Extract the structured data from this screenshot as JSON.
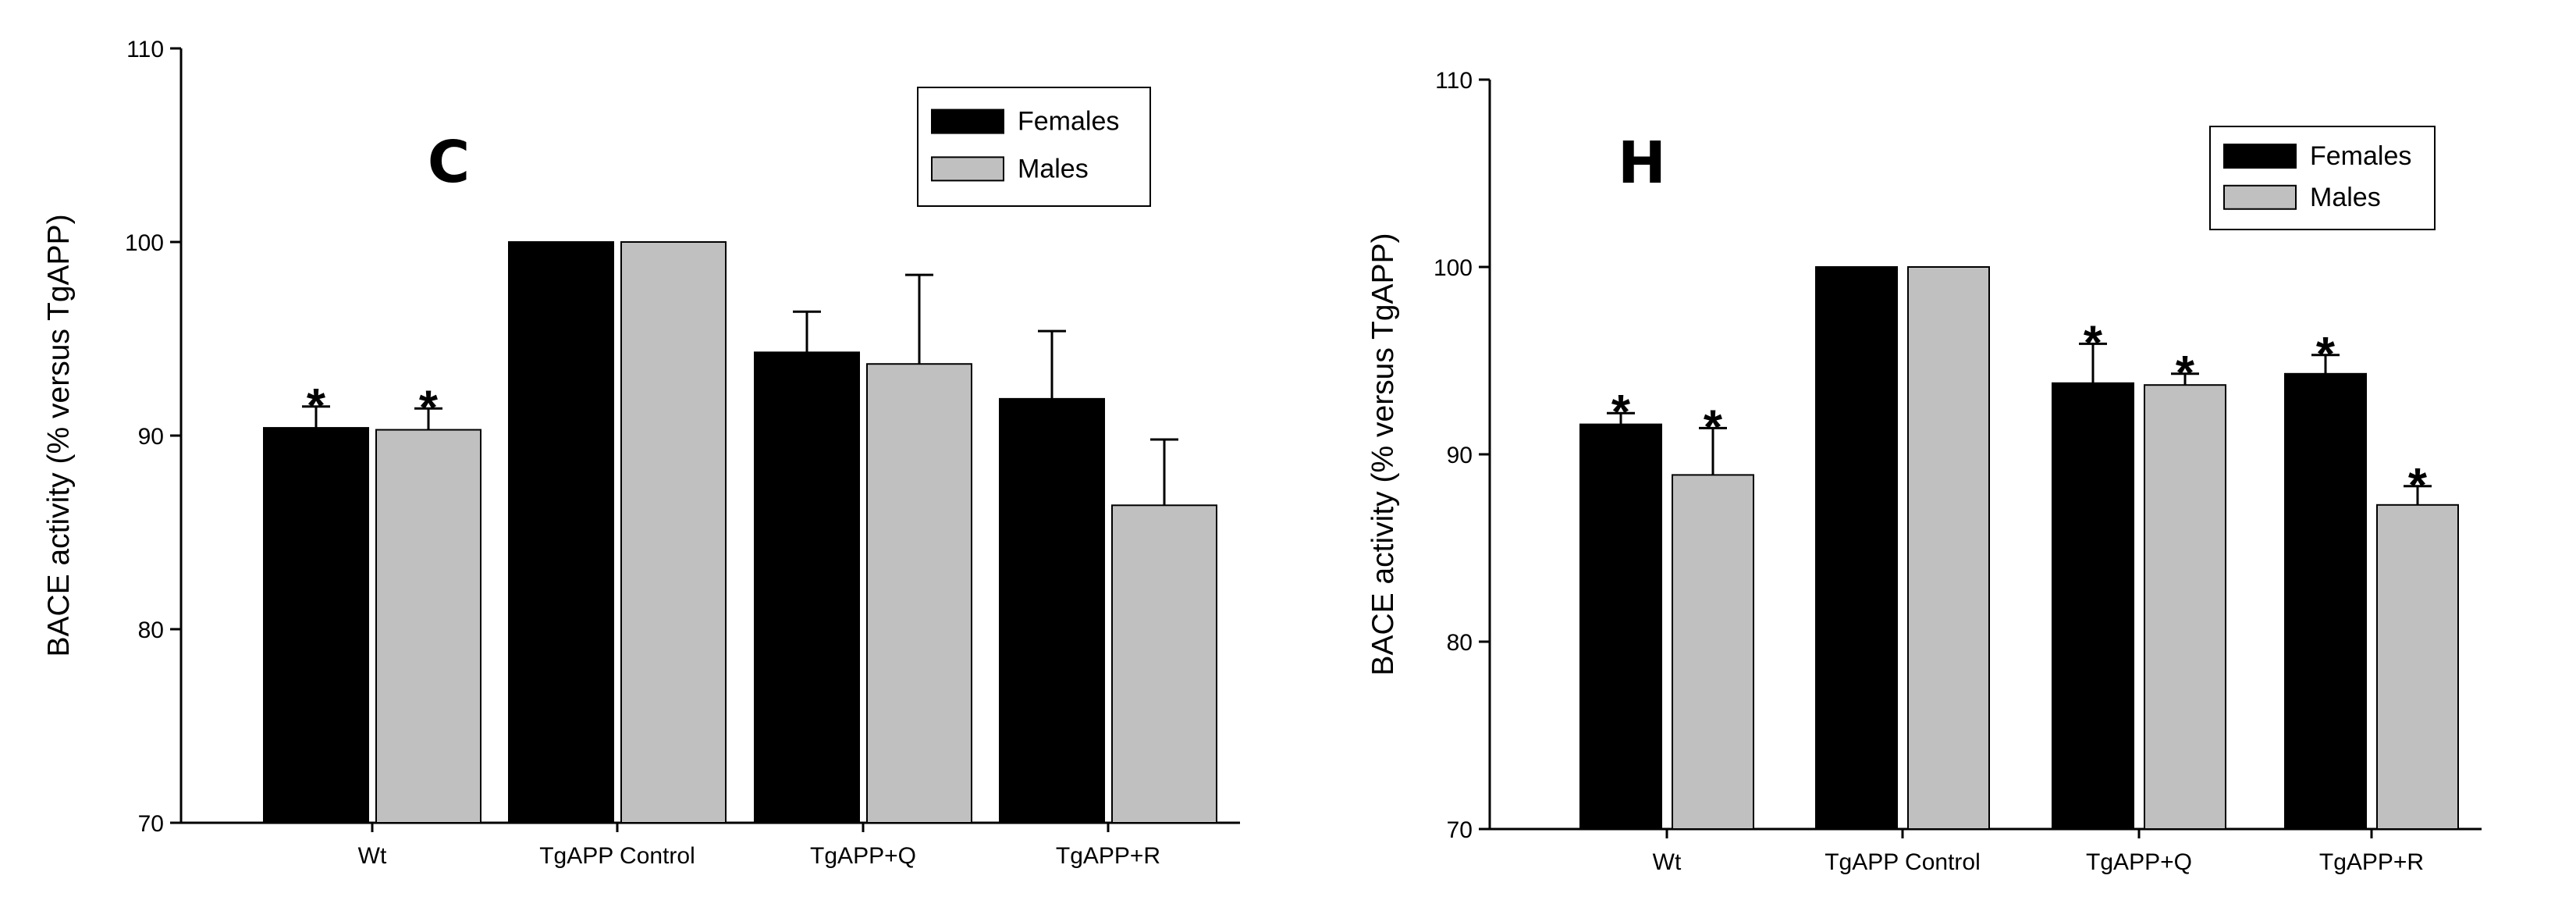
{
  "colors": {
    "females": "#000000",
    "males": "#c0c0c0",
    "axis": "#000000"
  },
  "chart_data": [
    {
      "type": "bar",
      "panel_label": "C",
      "categories": [
        "Wt",
        "TgAPP Control",
        "TgAPP+Q",
        "TgAPP+R"
      ],
      "ylabel": "BACE activity (% versus TgAPP)",
      "xlabel": "",
      "ylim": [
        70,
        110
      ],
      "yticks": [
        70,
        80,
        90,
        100,
        110
      ],
      "grid": false,
      "legend_position": "top-right",
      "series": [
        {
          "name": "Females",
          "values": [
            90.4,
            100,
            94.3,
            91.9
          ],
          "errors": [
            1.1,
            0,
            2.1,
            3.5
          ],
          "significant": [
            true,
            false,
            false,
            false
          ]
        },
        {
          "name": "Males",
          "values": [
            90.3,
            100,
            93.7,
            86.4
          ],
          "errors": [
            1.1,
            0,
            4.6,
            3.4
          ],
          "significant": [
            true,
            false,
            false,
            false
          ]
        }
      ],
      "annotations": [
        "*"
      ]
    },
    {
      "type": "bar",
      "panel_label": "H",
      "categories": [
        "Wt",
        "TgAPP Control",
        "TgAPP+Q",
        "TgAPP+R"
      ],
      "ylabel": "BACE activity (% versus TgAPP)",
      "xlabel": "",
      "ylim": [
        70,
        110
      ],
      "yticks": [
        70,
        80,
        90,
        100,
        110
      ],
      "grid": false,
      "legend_position": "top-right",
      "series": [
        {
          "name": "Females",
          "values": [
            91.6,
            100,
            93.8,
            94.3
          ],
          "errors": [
            0.6,
            0,
            2.1,
            1.0
          ],
          "significant": [
            true,
            false,
            true,
            true
          ]
        },
        {
          "name": "Males",
          "values": [
            88.9,
            100,
            93.7,
            87.3
          ],
          "errors": [
            2.5,
            0,
            0.6,
            1.0
          ],
          "significant": [
            true,
            false,
            true,
            true
          ]
        }
      ],
      "annotations": [
        "*"
      ]
    }
  ]
}
